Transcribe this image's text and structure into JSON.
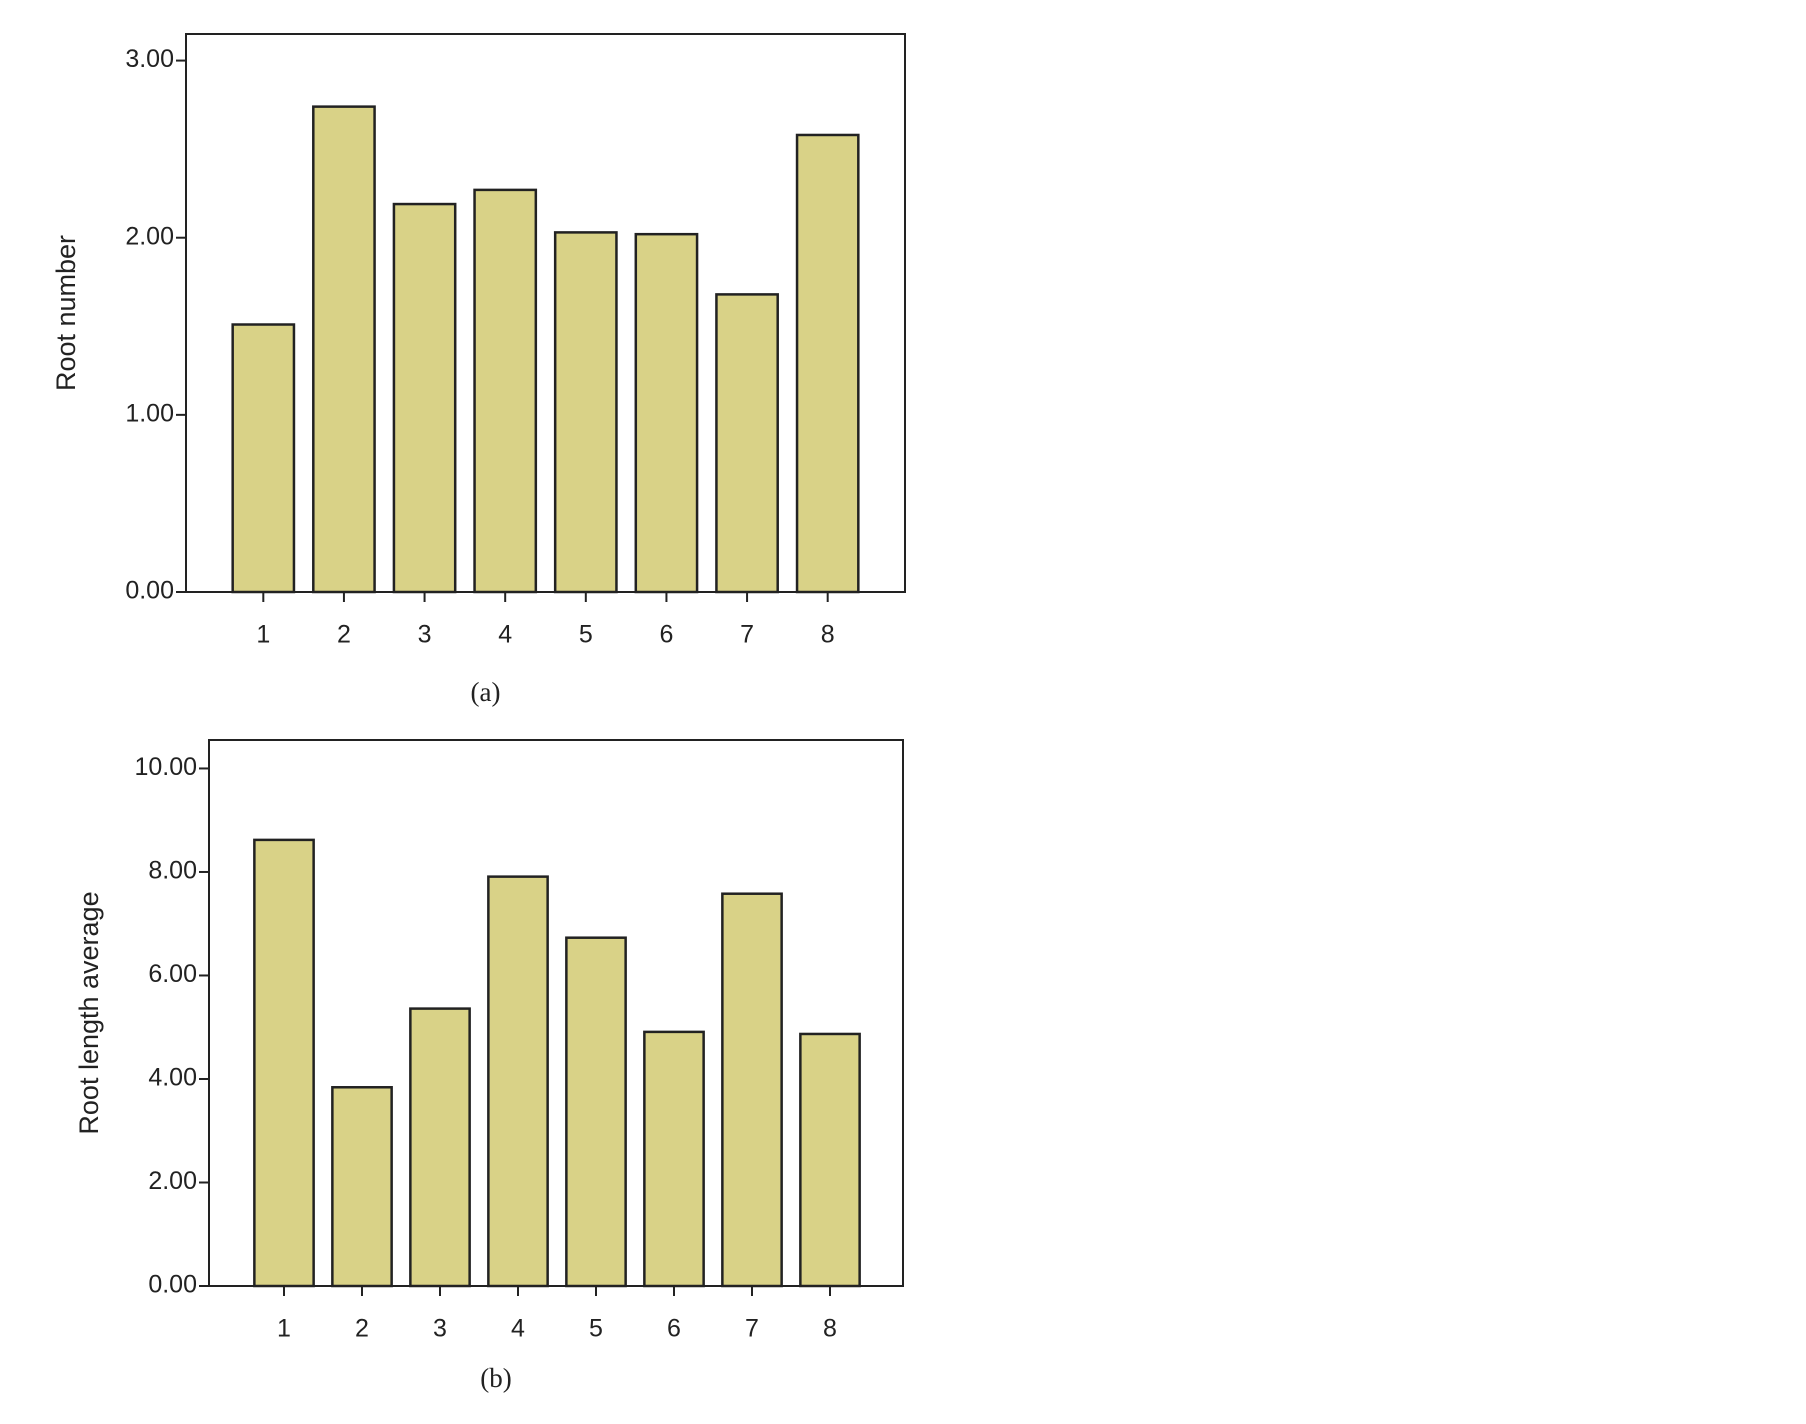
{
  "chart_data": [
    {
      "type": "bar",
      "y_label": "Root number",
      "caption": "(a)",
      "categories": [
        "1",
        "2",
        "3",
        "4",
        "5",
        "6",
        "7",
        "8"
      ],
      "values": [
        1.51,
        2.74,
        2.19,
        2.27,
        2.03,
        2.02,
        1.68,
        2.58
      ],
      "color": "#d9d287",
      "ylim": [
        0,
        3.15
      ],
      "yticks": [
        {
          "value": 0,
          "label": "0.00"
        },
        {
          "value": 1,
          "label": "1.00"
        },
        {
          "value": 2,
          "label": "2.00"
        },
        {
          "value": 3,
          "label": "3.00"
        }
      ]
    },
    {
      "type": "bar",
      "y_label": "Root length average",
      "caption": "(b)",
      "categories": [
        "1",
        "2",
        "3",
        "4",
        "5",
        "6",
        "7",
        "8"
      ],
      "values": [
        8.62,
        3.84,
        5.36,
        7.91,
        6.73,
        4.91,
        7.58,
        4.87
      ],
      "color": "#d9d287",
      "ylim": [
        0,
        10.55
      ],
      "yticks": [
        {
          "value": 0,
          "label": "0.00"
        },
        {
          "value": 2,
          "label": "2.00"
        },
        {
          "value": 4,
          "label": "4.00"
        },
        {
          "value": 6,
          "label": "6.00"
        },
        {
          "value": 8,
          "label": "8.00"
        },
        {
          "value": 10,
          "label": "10.00"
        }
      ]
    }
  ]
}
